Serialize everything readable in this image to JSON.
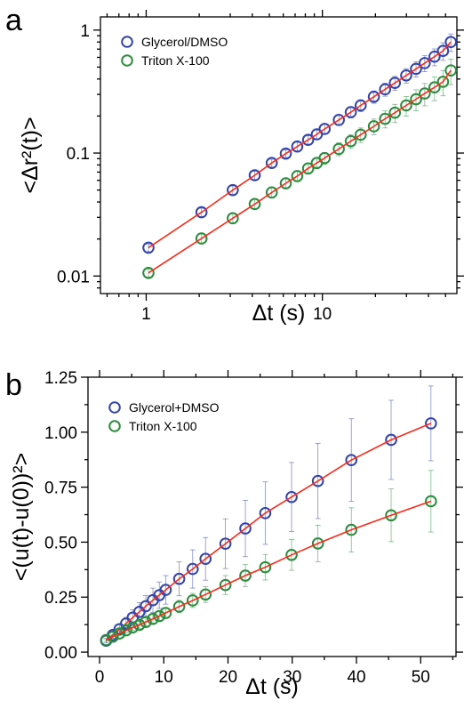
{
  "chart_data": [
    {
      "panel": "a",
      "type": "scatter",
      "x_scale": "log",
      "y_scale": "log",
      "xlim": [
        0.55,
        58
      ],
      "ylim": [
        0.0072,
        1.28
      ],
      "x_ticks": [
        1,
        10
      ],
      "x_tick_labels": [
        "1",
        "10"
      ],
      "y_ticks": [
        0.01,
        0.1,
        1
      ],
      "y_tick_labels": [
        "0.01",
        "0.1",
        "1"
      ],
      "xlabel": "Δt (s)",
      "ylabel": "<Δr²(t)>",
      "legend_position": "top-left",
      "fit_color": "#ff2a1a",
      "series": [
        {
          "name": "Glycerol/DMSO",
          "color": "#3344aa",
          "x": [
            1.03,
            2.06,
            3.1,
            4.13,
            5.16,
            6.2,
            7.2,
            8.3,
            9.3,
            10.3,
            12.4,
            14.5,
            16.5,
            19.6,
            22.7,
            25.8,
            29.9,
            34.0,
            38.1,
            43.3,
            48.4,
            53.6
          ],
          "y": [
            0.017,
            0.033,
            0.05,
            0.066,
            0.083,
            0.099,
            0.113,
            0.128,
            0.142,
            0.157,
            0.186,
            0.215,
            0.244,
            0.287,
            0.33,
            0.372,
            0.428,
            0.484,
            0.539,
            0.608,
            0.677,
            0.8
          ],
          "err": [
            0.0012,
            0.0025,
            0.004,
            0.005,
            0.006,
            0.007,
            0.009,
            0.01,
            0.012,
            0.014,
            0.018,
            0.022,
            0.027,
            0.033,
            0.04,
            0.048,
            0.058,
            0.068,
            0.08,
            0.095,
            0.11,
            0.13
          ]
        },
        {
          "name": "Triton X-100",
          "color": "#2a8c3c",
          "x": [
            1.03,
            2.06,
            3.1,
            4.13,
            5.16,
            6.2,
            7.2,
            8.3,
            9.3,
            10.3,
            12.4,
            14.5,
            16.5,
            19.6,
            22.7,
            25.8,
            29.9,
            34.0,
            38.1,
            43.3,
            48.4,
            53.6
          ],
          "y": [
            0.0106,
            0.0202,
            0.0295,
            0.0385,
            0.0478,
            0.0568,
            0.065,
            0.075,
            0.083,
            0.091,
            0.108,
            0.125,
            0.141,
            0.165,
            0.19,
            0.213,
            0.244,
            0.274,
            0.305,
            0.342,
            0.38,
            0.47
          ],
          "err": [
            0.0008,
            0.0018,
            0.0028,
            0.0036,
            0.0046,
            0.0055,
            0.0065,
            0.0076,
            0.0087,
            0.01,
            0.013,
            0.016,
            0.019,
            0.024,
            0.03,
            0.036,
            0.044,
            0.053,
            0.063,
            0.075,
            0.088,
            0.11
          ]
        }
      ]
    },
    {
      "panel": "b",
      "type": "scatter",
      "xlim": [
        -1.8,
        55.5
      ],
      "ylim": [
        -0.02,
        1.25
      ],
      "x_ticks": [
        0,
        10,
        20,
        30,
        40,
        50
      ],
      "x_tick_labels": [
        "0",
        "10",
        "20",
        "30",
        "40",
        "50"
      ],
      "y_ticks": [
        0.0,
        0.25,
        0.5,
        0.75,
        1.0,
        1.25
      ],
      "y_tick_labels": [
        "0.00",
        "0.25",
        "0.50",
        "0.75",
        "1.00",
        "1.25"
      ],
      "xlabel": "Δt (s)",
      "ylabel": "<(u(t)-u(0))²>",
      "legend_position": "top-left",
      "fit_color": "#ff2a1a",
      "series": [
        {
          "name": "Glycerol+DMSO",
          "color": "#3344aa",
          "x": [
            1.03,
            2.06,
            3.1,
            4.13,
            5.16,
            6.2,
            7.2,
            8.3,
            9.3,
            10.3,
            12.4,
            14.5,
            16.5,
            19.6,
            22.7,
            25.8,
            29.9,
            34.0,
            39.2,
            45.4,
            51.6
          ],
          "y": [
            0.052,
            0.078,
            0.104,
            0.13,
            0.157,
            0.183,
            0.209,
            0.236,
            0.259,
            0.283,
            0.333,
            0.378,
            0.424,
            0.493,
            0.562,
            0.632,
            0.705,
            0.778,
            0.873,
            0.965,
            1.04
          ],
          "err": [
            0.01,
            0.015,
            0.022,
            0.028,
            0.035,
            0.042,
            0.048,
            0.055,
            0.06,
            0.065,
            0.077,
            0.087,
            0.097,
            0.113,
            0.128,
            0.142,
            0.157,
            0.171,
            0.188,
            0.18,
            0.17
          ]
        },
        {
          "name": "Triton X-100",
          "color": "#2a8c3c",
          "x": [
            1.03,
            2.06,
            3.1,
            4.13,
            5.16,
            6.2,
            7.2,
            8.3,
            9.3,
            10.3,
            12.4,
            14.5,
            16.5,
            19.6,
            22.7,
            25.8,
            29.9,
            34.0,
            39.2,
            45.4,
            51.6
          ],
          "y": [
            0.055,
            0.07,
            0.085,
            0.099,
            0.112,
            0.124,
            0.137,
            0.151,
            0.164,
            0.178,
            0.207,
            0.235,
            0.262,
            0.305,
            0.348,
            0.386,
            0.442,
            0.494,
            0.556,
            0.622,
            0.686
          ],
          "err": [
            0.006,
            0.008,
            0.01,
            0.012,
            0.014,
            0.016,
            0.018,
            0.02,
            0.022,
            0.024,
            0.028,
            0.032,
            0.036,
            0.043,
            0.05,
            0.058,
            0.07,
            0.083,
            0.1,
            0.12,
            0.14
          ]
        }
      ]
    }
  ]
}
